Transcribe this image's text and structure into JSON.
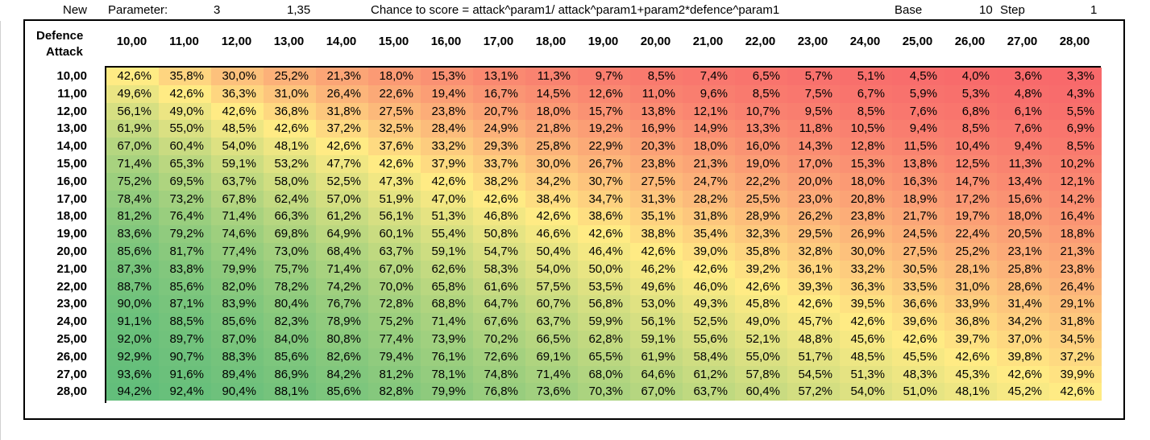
{
  "header": {
    "new_label": "New",
    "parameter_label": "Parameter:",
    "param1": "3",
    "param2": "1,35",
    "formula": "Chance to score = attack^param1/ attack^param1+param2*defence^param1",
    "base_label": "Base",
    "base_value": "10",
    "step_label": "Step",
    "step_value": "1"
  },
  "table": {
    "defence_label": "Defence",
    "attack_label": "Attack",
    "columns": [
      "10,00",
      "11,00",
      "12,00",
      "13,00",
      "14,00",
      "15,00",
      "16,00",
      "17,00",
      "18,00",
      "19,00",
      "20,00",
      "21,00",
      "22,00",
      "23,00",
      "24,00",
      "25,00",
      "26,00",
      "27,00",
      "28,00"
    ],
    "rows": [
      {
        "label": "10,00",
        "cells": [
          "42,6%",
          "35,8%",
          "30,0%",
          "25,2%",
          "21,3%",
          "18,0%",
          "15,3%",
          "13,1%",
          "11,3%",
          "9,7%",
          "8,5%",
          "7,4%",
          "6,5%",
          "5,7%",
          "5,1%",
          "4,5%",
          "4,0%",
          "3,6%",
          "3,3%"
        ]
      },
      {
        "label": "11,00",
        "cells": [
          "49,6%",
          "42,6%",
          "36,3%",
          "31,0%",
          "26,4%",
          "22,6%",
          "19,4%",
          "16,7%",
          "14,5%",
          "12,6%",
          "11,0%",
          "9,6%",
          "8,5%",
          "7,5%",
          "6,7%",
          "5,9%",
          "5,3%",
          "4,8%",
          "4,3%"
        ]
      },
      {
        "label": "12,00",
        "cells": [
          "56,1%",
          "49,0%",
          "42,6%",
          "36,8%",
          "31,8%",
          "27,5%",
          "23,8%",
          "20,7%",
          "18,0%",
          "15,7%",
          "13,8%",
          "12,1%",
          "10,7%",
          "9,5%",
          "8,5%",
          "7,6%",
          "6,8%",
          "6,1%",
          "5,5%"
        ]
      },
      {
        "label": "13,00",
        "cells": [
          "61,9%",
          "55,0%",
          "48,5%",
          "42,6%",
          "37,2%",
          "32,5%",
          "28,4%",
          "24,9%",
          "21,8%",
          "19,2%",
          "16,9%",
          "14,9%",
          "13,3%",
          "11,8%",
          "10,5%",
          "9,4%",
          "8,5%",
          "7,6%",
          "6,9%"
        ]
      },
      {
        "label": "14,00",
        "cells": [
          "67,0%",
          "60,4%",
          "54,0%",
          "48,1%",
          "42,6%",
          "37,6%",
          "33,2%",
          "29,3%",
          "25,8%",
          "22,9%",
          "20,3%",
          "18,0%",
          "16,0%",
          "14,3%",
          "12,8%",
          "11,5%",
          "10,4%",
          "9,4%",
          "8,5%"
        ]
      },
      {
        "label": "15,00",
        "cells": [
          "71,4%",
          "65,3%",
          "59,1%",
          "53,2%",
          "47,7%",
          "42,6%",
          "37,9%",
          "33,7%",
          "30,0%",
          "26,7%",
          "23,8%",
          "21,3%",
          "19,0%",
          "17,0%",
          "15,3%",
          "13,8%",
          "12,5%",
          "11,3%",
          "10,2%"
        ]
      },
      {
        "label": "16,00",
        "cells": [
          "75,2%",
          "69,5%",
          "63,7%",
          "58,0%",
          "52,5%",
          "47,3%",
          "42,6%",
          "38,2%",
          "34,2%",
          "30,7%",
          "27,5%",
          "24,7%",
          "22,2%",
          "20,0%",
          "18,0%",
          "16,3%",
          "14,7%",
          "13,4%",
          "12,1%"
        ]
      },
      {
        "label": "17,00",
        "cells": [
          "78,4%",
          "73,2%",
          "67,8%",
          "62,4%",
          "57,0%",
          "51,9%",
          "47,0%",
          "42,6%",
          "38,4%",
          "34,7%",
          "31,3%",
          "28,2%",
          "25,5%",
          "23,0%",
          "20,8%",
          "18,9%",
          "17,2%",
          "15,6%",
          "14,2%"
        ]
      },
      {
        "label": "18,00",
        "cells": [
          "81,2%",
          "76,4%",
          "71,4%",
          "66,3%",
          "61,2%",
          "56,1%",
          "51,3%",
          "46,8%",
          "42,6%",
          "38,6%",
          "35,1%",
          "31,8%",
          "28,9%",
          "26,2%",
          "23,8%",
          "21,7%",
          "19,7%",
          "18,0%",
          "16,4%"
        ]
      },
      {
        "label": "19,00",
        "cells": [
          "83,6%",
          "79,2%",
          "74,6%",
          "69,8%",
          "64,9%",
          "60,1%",
          "55,4%",
          "50,8%",
          "46,6%",
          "42,6%",
          "38,8%",
          "35,4%",
          "32,3%",
          "29,5%",
          "26,9%",
          "24,5%",
          "22,4%",
          "20,5%",
          "18,8%"
        ]
      },
      {
        "label": "20,00",
        "cells": [
          "85,6%",
          "81,7%",
          "77,4%",
          "73,0%",
          "68,4%",
          "63,7%",
          "59,1%",
          "54,7%",
          "50,4%",
          "46,4%",
          "42,6%",
          "39,0%",
          "35,8%",
          "32,8%",
          "30,0%",
          "27,5%",
          "25,2%",
          "23,1%",
          "21,3%"
        ]
      },
      {
        "label": "21,00",
        "cells": [
          "87,3%",
          "83,8%",
          "79,9%",
          "75,7%",
          "71,4%",
          "67,0%",
          "62,6%",
          "58,3%",
          "54,0%",
          "50,0%",
          "46,2%",
          "42,6%",
          "39,2%",
          "36,1%",
          "33,2%",
          "30,5%",
          "28,1%",
          "25,8%",
          "23,8%"
        ]
      },
      {
        "label": "22,00",
        "cells": [
          "88,7%",
          "85,6%",
          "82,0%",
          "78,2%",
          "74,2%",
          "70,0%",
          "65,8%",
          "61,6%",
          "57,5%",
          "53,5%",
          "49,6%",
          "46,0%",
          "42,6%",
          "39,3%",
          "36,3%",
          "33,5%",
          "31,0%",
          "28,6%",
          "26,4%"
        ]
      },
      {
        "label": "23,00",
        "cells": [
          "90,0%",
          "87,1%",
          "83,9%",
          "80,4%",
          "76,7%",
          "72,8%",
          "68,8%",
          "64,7%",
          "60,7%",
          "56,8%",
          "53,0%",
          "49,3%",
          "45,8%",
          "42,6%",
          "39,5%",
          "36,6%",
          "33,9%",
          "31,4%",
          "29,1%"
        ]
      },
      {
        "label": "24,00",
        "cells": [
          "91,1%",
          "88,5%",
          "85,6%",
          "82,3%",
          "78,9%",
          "75,2%",
          "71,4%",
          "67,6%",
          "63,7%",
          "59,9%",
          "56,1%",
          "52,5%",
          "49,0%",
          "45,7%",
          "42,6%",
          "39,6%",
          "36,8%",
          "34,2%",
          "31,8%"
        ]
      },
      {
        "label": "25,00",
        "cells": [
          "92,0%",
          "89,7%",
          "87,0%",
          "84,0%",
          "80,8%",
          "77,4%",
          "73,9%",
          "70,2%",
          "66,5%",
          "62,8%",
          "59,1%",
          "55,6%",
          "52,1%",
          "48,8%",
          "45,6%",
          "42,6%",
          "39,7%",
          "37,0%",
          "34,5%"
        ]
      },
      {
        "label": "26,00",
        "cells": [
          "92,9%",
          "90,7%",
          "88,3%",
          "85,6%",
          "82,6%",
          "79,4%",
          "76,1%",
          "72,6%",
          "69,1%",
          "65,5%",
          "61,9%",
          "58,4%",
          "55,0%",
          "51,7%",
          "48,5%",
          "45,5%",
          "42,6%",
          "39,8%",
          "37,2%"
        ]
      },
      {
        "label": "27,00",
        "cells": [
          "93,6%",
          "91,6%",
          "89,4%",
          "86,9%",
          "84,2%",
          "81,2%",
          "78,1%",
          "74,8%",
          "71,4%",
          "68,0%",
          "64,6%",
          "61,2%",
          "57,8%",
          "54,5%",
          "51,3%",
          "48,3%",
          "45,3%",
          "42,6%",
          "39,9%"
        ]
      },
      {
        "label": "28,00",
        "cells": [
          "94,2%",
          "92,4%",
          "90,4%",
          "88,1%",
          "85,6%",
          "82,8%",
          "79,9%",
          "76,8%",
          "73,6%",
          "70,3%",
          "67,0%",
          "63,7%",
          "60,4%",
          "57,2%",
          "54,0%",
          "51,0%",
          "48,1%",
          "45,2%",
          "42,6%"
        ]
      }
    ]
  },
  "colors": {
    "scale_low": "#f8696b",
    "scale_mid": "#ffeb84",
    "scale_high": "#63be7b"
  }
}
